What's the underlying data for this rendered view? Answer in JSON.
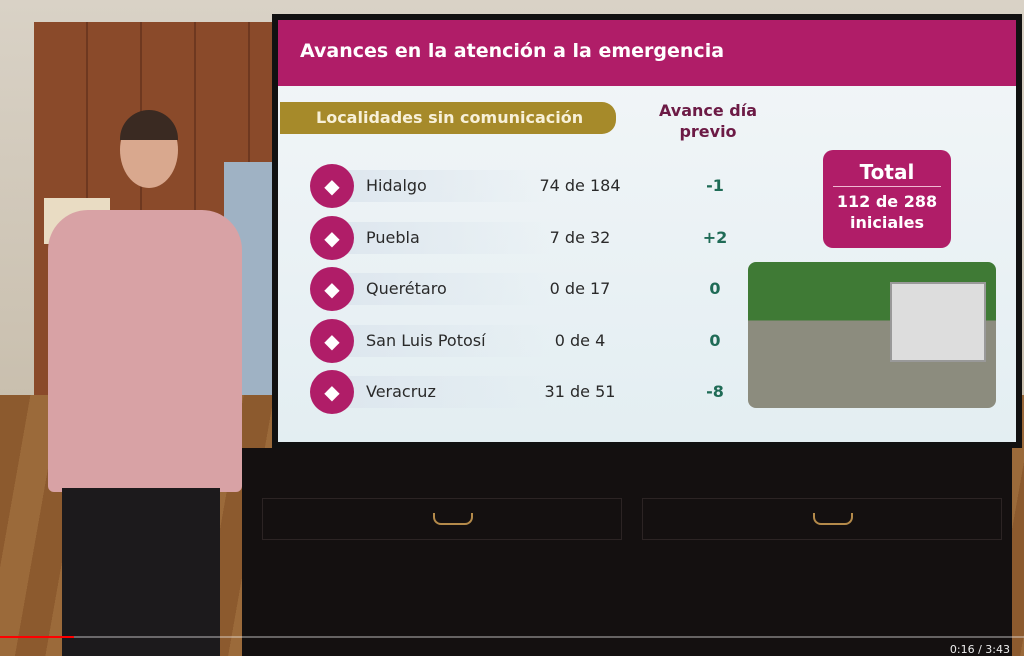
{
  "slide": {
    "title": "Avances en la atención a la emergencia",
    "subtitle": "Localidades sin comunicación",
    "column_header": "Avance día previo",
    "rows": [
      {
        "state": "Hidalgo",
        "value": "74 de 184",
        "change": "-1"
      },
      {
        "state": "Puebla",
        "value": "7 de 32",
        "change": "+2"
      },
      {
        "state": "Querétaro",
        "value": "0 de 17",
        "change": "0"
      },
      {
        "state": "San Luis Potosí",
        "value": "0 de 4",
        "change": "0"
      },
      {
        "state": "Veracruz",
        "value": "31 de 51",
        "change": "-8"
      }
    ],
    "total": {
      "label": "Total",
      "value": "112 de 288 iniciales"
    },
    "accent": "#b01d68",
    "gold": "#a68a2a"
  },
  "player": {
    "time": "0:16 / 3:43",
    "progress": 0.072
  }
}
